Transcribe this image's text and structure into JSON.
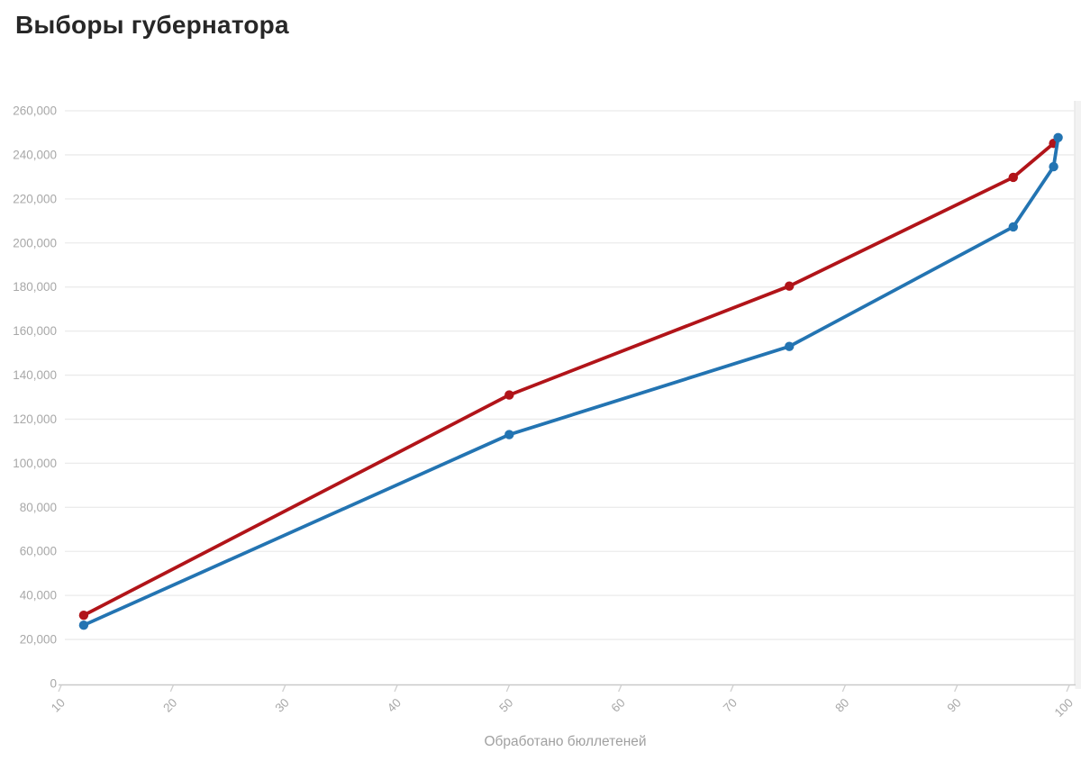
{
  "chart_data": {
    "type": "line",
    "title": "Выборы губернатора",
    "xlabel": "Обработано бюллетеней",
    "ylabel": "",
    "xlim": [
      10,
      100
    ],
    "ylim": [
      0,
      260000
    ],
    "x_ticks": [
      10,
      20,
      30,
      40,
      50,
      60,
      70,
      80,
      90,
      100
    ],
    "y_ticks": [
      0,
      20000,
      40000,
      60000,
      80000,
      100000,
      120000,
      140000,
      160000,
      180000,
      200000,
      220000,
      240000,
      260000
    ],
    "y_tick_format": "thousands-comma",
    "grid": "horizontal-only",
    "legend": "none",
    "marker": "circle",
    "series": [
      {
        "name": "red-candidate",
        "color": "#b11419",
        "points": [
          [
            12,
            31000
          ],
          [
            50,
            131000
          ],
          [
            75,
            180400
          ],
          [
            95,
            229800
          ],
          [
            98.6,
            245200
          ]
        ]
      },
      {
        "name": "blue-candidate",
        "color": "#2374b2",
        "points": [
          [
            12,
            26500
          ],
          [
            50,
            113000
          ],
          [
            75,
            153000
          ],
          [
            95,
            207300
          ],
          [
            98.6,
            234600
          ],
          [
            99,
            247800
          ]
        ]
      }
    ]
  },
  "colors": {
    "title_text": "#272727",
    "tick_text": "#a8a8a8",
    "axis_label_text": "#a0a0a0",
    "gridline": "#ebebeb",
    "axis_line": "#c9c9c9",
    "background": "#ffffff",
    "right_margin_band": "#f2f2f2"
  }
}
